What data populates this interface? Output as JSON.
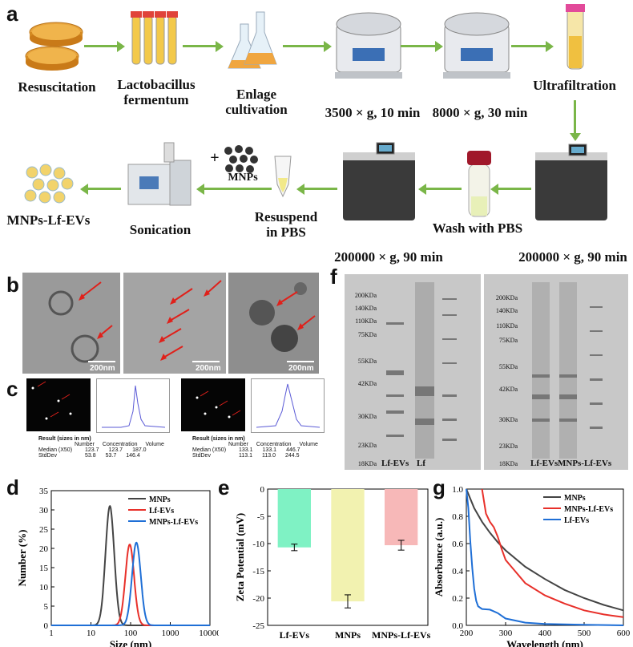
{
  "panels": {
    "a": "a",
    "b": "b",
    "c": "c",
    "d": "d",
    "e": "e",
    "f": "f",
    "g": "g"
  },
  "schematic": {
    "resuscitation": "Resuscitation",
    "lactobacillus": "Lactobacillus",
    "fermentum": "fermentum",
    "enlarge": "Enlage cultivation",
    "spin1": "3500 × g, 10 min",
    "spin2": "8000 × g, 30 min",
    "ultrafiltration": "Ultrafiltration",
    "ultra1": "200000 × g, 90 min",
    "ultra2": "200000 × g, 90 min",
    "wash": "Wash with PBS",
    "resuspend1": "Resuspend",
    "resuspend2": "in PBS",
    "plus": "+",
    "mnps": "MNPs",
    "sonication": "Sonication",
    "product": "MNPs-Lf-EVs"
  },
  "tem": {
    "scale": "200nm"
  },
  "nta": {
    "left": {
      "result_title": "Result (sizes in nm)",
      "headers": [
        "Number",
        "Concentration",
        "Volume"
      ],
      "rows": [
        {
          "label": "Median (X50)",
          "values": [
            "123.7",
            "123.7",
            "187.0"
          ]
        },
        {
          "label": "StdDev",
          "values": [
            "53.8",
            "53.7",
            "146.4"
          ]
        }
      ]
    },
    "right": {
      "result_title": "Result (sizes in nm)",
      "headers": [
        "Number",
        "Concentration",
        "Volume"
      ],
      "rows": [
        {
          "label": "Median (X50)",
          "values": [
            "133.1",
            "133.1",
            "446.7"
          ]
        },
        {
          "label": "StdDev",
          "values": [
            "113.1",
            "113.0",
            "244.5"
          ]
        }
      ]
    }
  },
  "gel": {
    "markers": [
      "200KDa",
      "140KDa",
      "110KDa",
      "75KDa",
      "55KDa",
      "42KDa",
      "30KDa",
      "23KDa",
      "18KDa"
    ],
    "left_lanes": [
      "Lf-EVs",
      "Lf"
    ],
    "right_lanes": [
      "Lf-EVs",
      "MNPs-Lf-EVs"
    ]
  },
  "chart_data": [
    {
      "panel": "d",
      "type": "line",
      "xlabel": "Size (nm)",
      "ylabel": "Number (%)",
      "xscale": "log",
      "xlim": [
        1,
        10000
      ],
      "ylim": [
        0,
        35
      ],
      "xticks": [
        "1",
        "10",
        "100",
        "1000",
        "10000"
      ],
      "yticks": [
        "0",
        "5",
        "10",
        "15",
        "20",
        "25",
        "30",
        "35"
      ],
      "series": [
        {
          "name": "MNPs",
          "color": "#444444",
          "peak_x": 30,
          "peak_y": 31,
          "width": 0.11
        },
        {
          "name": "Lf-EVs",
          "color": "#e8302a",
          "peak_x": 95,
          "peak_y": 21,
          "width": 0.11
        },
        {
          "name": "MNPs-Lf-EVs",
          "color": "#1f6fd6",
          "peak_x": 140,
          "peak_y": 21.5,
          "width": 0.11
        }
      ]
    },
    {
      "panel": "e",
      "type": "bar",
      "ylabel": "Zeta Potential (mV)",
      "ylim": [
        -25,
        0
      ],
      "yticks": [
        "0",
        "-5",
        "-10",
        "-15",
        "-20",
        "-25"
      ],
      "categories": [
        "Lf-EVs",
        "MNPs",
        "MNPs-Lf-EVs"
      ],
      "values": [
        -10.7,
        -20.6,
        -10.3
      ],
      "errors": [
        0.6,
        1.2,
        0.9
      ],
      "colors": [
        "#7ff2c4",
        "#f2f2b0",
        "#f7b8b8"
      ]
    },
    {
      "panel": "g",
      "type": "line",
      "xlabel": "Wavelength (nm)",
      "ylabel": "Absorbance (a.u.)",
      "xlim": [
        200,
        600
      ],
      "ylim": [
        0,
        1.0
      ],
      "xticks": [
        "200",
        "300",
        "400",
        "500",
        "600"
      ],
      "yticks": [
        "0.0",
        "0.2",
        "0.4",
        "0.6",
        "0.8",
        "1.0"
      ],
      "series": [
        {
          "name": "MNPs",
          "color": "#444444",
          "x": [
            200,
            220,
            240,
            260,
            280,
            300,
            350,
            400,
            450,
            500,
            550,
            600
          ],
          "y": [
            1.0,
            0.86,
            0.76,
            0.68,
            0.61,
            0.55,
            0.43,
            0.34,
            0.26,
            0.2,
            0.15,
            0.11
          ]
        },
        {
          "name": "MNPs-Lf-EVs",
          "color": "#e8302a",
          "x": [
            240,
            250,
            260,
            270,
            280,
            290,
            300,
            350,
            400,
            450,
            500,
            550,
            600
          ],
          "y": [
            1.0,
            0.82,
            0.76,
            0.72,
            0.65,
            0.56,
            0.48,
            0.31,
            0.22,
            0.16,
            0.11,
            0.08,
            0.06
          ]
        },
        {
          "name": "Lf-EVs",
          "color": "#1f6fd6",
          "x": [
            200,
            205,
            210,
            215,
            220,
            225,
            230,
            240,
            260,
            280,
            300,
            350,
            400,
            500,
            600
          ],
          "y": [
            1.0,
            0.86,
            0.62,
            0.42,
            0.27,
            0.18,
            0.14,
            0.12,
            0.115,
            0.09,
            0.05,
            0.02,
            0.01,
            0.005,
            0.0
          ]
        }
      ]
    }
  ]
}
